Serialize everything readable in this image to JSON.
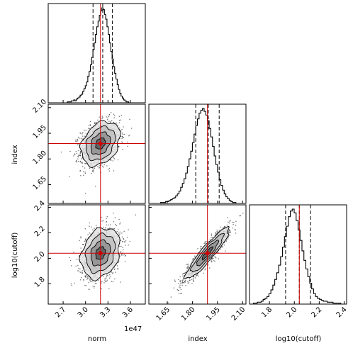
{
  "chart_data": {
    "type": "corner",
    "parameters": [
      "norm",
      "index",
      "log10(cutoff)"
    ],
    "axis_labels": {
      "x": [
        "norm",
        "index",
        "log10(cutoff)"
      ],
      "y_row2": "index",
      "y_row3": "log10(cutoff)"
    },
    "offset_text": "1e47",
    "truths": {
      "norm": 3.2,
      "index": 1.89,
      "log10(cutoff)": 2.04
    },
    "ranges": {
      "norm": [
        2.5,
        3.8
      ],
      "index": [
        1.54,
        2.12
      ],
      "log10(cutoff)": [
        1.64,
        2.42
      ]
    },
    "ticks": {
      "norm": [
        "2.7",
        "3.0",
        "3.3",
        "3.6"
      ],
      "index": [
        "1.65",
        "1.80",
        "1.95",
        "2.10"
      ],
      "log10(cutoff)": [
        "1.8",
        "2.0",
        "2.2",
        "2.4"
      ]
    },
    "marginals": {
      "norm": {
        "quantiles": [
          3.1,
          3.23,
          3.36
        ],
        "bin_edges_range": [
          2.5,
          3.8
        ],
        "counts": [
          0,
          0,
          0,
          0,
          0,
          0,
          0,
          0,
          0,
          0,
          0,
          0,
          0,
          0,
          0,
          1,
          1,
          1,
          2,
          2,
          3,
          2,
          4,
          5,
          6,
          8,
          9,
          12,
          15,
          18,
          22,
          28,
          33,
          40,
          48,
          56,
          63,
          72,
          80,
          86,
          92,
          97,
          100,
          98,
          93,
          88,
          80,
          72,
          63,
          54,
          46,
          38,
          31,
          25,
          19,
          14,
          10,
          7,
          5,
          3,
          2,
          1,
          1,
          0,
          0,
          0,
          0,
          0,
          0,
          0,
          0,
          0,
          0,
          0,
          0,
          0
        ]
      },
      "index": {
        "quantiles": [
          1.82,
          1.895,
          1.96
        ],
        "bin_edges_range": [
          1.54,
          2.12
        ],
        "counts": [
          0,
          0,
          0,
          0,
          0,
          0,
          0,
          1,
          1,
          1,
          2,
          2,
          3,
          4,
          5,
          6,
          8,
          10,
          13,
          17,
          21,
          26,
          32,
          39,
          47,
          55,
          64,
          73,
          82,
          89,
          95,
          98,
          100,
          97,
          93,
          87,
          79,
          70,
          60,
          50,
          41,
          33,
          25,
          19,
          14,
          10,
          7,
          5,
          3,
          2,
          1,
          1,
          0,
          0,
          0,
          0,
          0,
          0
        ]
      },
      "log10(cutoff)": {
        "quantiles": [
          1.93,
          2.04,
          2.13
        ],
        "bin_edges_range": [
          1.64,
          2.42
        ],
        "counts": [
          0,
          0,
          1,
          1,
          2,
          2,
          3,
          5,
          6,
          8,
          11,
          15,
          20,
          26,
          33,
          41,
          50,
          60,
          71,
          82,
          92,
          98,
          100,
          96,
          88,
          78,
          67,
          56,
          46,
          37,
          29,
          22,
          16,
          11,
          8,
          6,
          5,
          4,
          3,
          3,
          2,
          2,
          2,
          1,
          1,
          1,
          1,
          0,
          0,
          0
        ]
      }
    },
    "scatter_pairs": [
      {
        "x": "norm",
        "y": "index",
        "mean": [
          3.2,
          1.89
        ],
        "sd": [
          0.13,
          0.065
        ],
        "corr": 0.3
      },
      {
        "x": "norm",
        "y": "log10(cutoff)",
        "mean": [
          3.2,
          2.04
        ],
        "sd": [
          0.13,
          0.1
        ],
        "corr": 0.25
      },
      {
        "x": "index",
        "y": "log10(cutoff)",
        "mean": [
          1.89,
          2.04
        ],
        "sd": [
          0.065,
          0.1
        ],
        "corr": 0.92
      }
    ],
    "colors": {
      "truth": "#cc0000",
      "points": "#000000",
      "histogram": "#000000",
      "contour_levels": [
        "#e3e3e3",
        "#c0c0c0",
        "#8f8f8f",
        "#5a5a5a"
      ]
    },
    "grid": false
  }
}
